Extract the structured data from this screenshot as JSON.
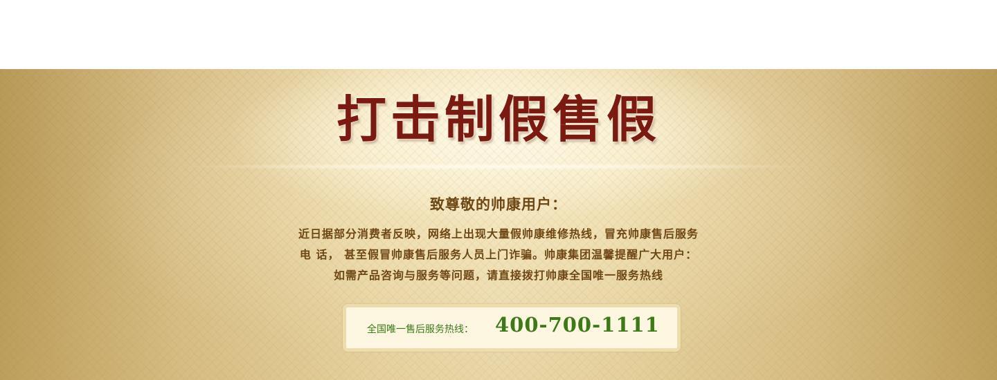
{
  "banner": {
    "headline": "打击制假售假",
    "greeting": "致尊敬的帅康用户：",
    "notice_lines": [
      "近日据部分消费者反映，网络上出现大量假帅康维修热线，冒充帅康售后服务",
      "电 话， 甚至假冒帅康售后服务人员上门诈骗。帅康集团温馨提醒广大用户：",
      "如需产品咨询与服务等问题，请直接拨打帅康全国唯一服务热线"
    ],
    "hotline": {
      "label": "全国唯一售后服务热线：",
      "number": "400-700-1111"
    }
  },
  "colors": {
    "headline": "#7a1a10",
    "body_text": "#6e4714",
    "hotline_green": "#3c7a18",
    "box_fill": "#fdf6e0",
    "box_border": "#ecdcae"
  }
}
